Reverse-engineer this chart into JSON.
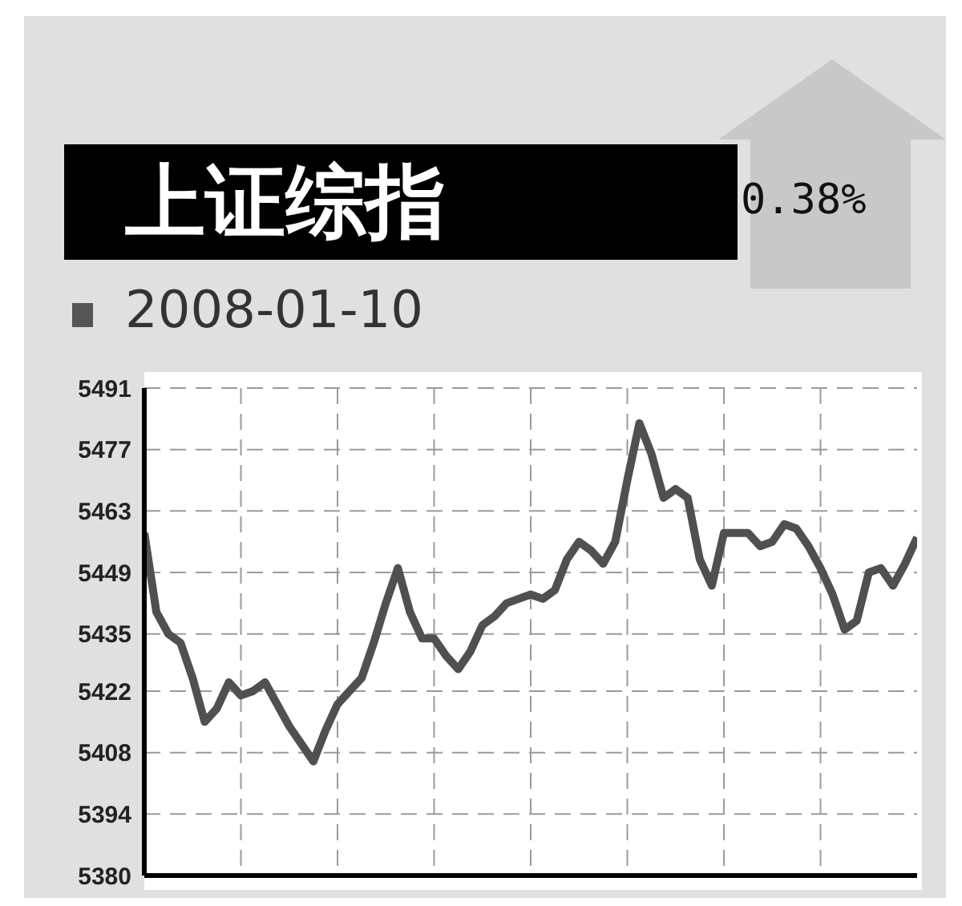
{
  "chart_data": {
    "type": "line",
    "title": "上证综指",
    "subtitle": "2008-01-10",
    "annotations": [
      "0.38%"
    ],
    "categories": [
      null,
      null,
      null,
      null,
      null,
      null,
      null,
      null,
      null,
      null,
      null,
      null,
      null,
      null,
      null,
      null,
      null,
      null,
      null,
      null,
      null,
      null,
      null,
      null,
      null,
      null,
      null,
      null,
      null,
      null,
      null,
      null,
      null,
      null,
      null,
      null,
      null,
      null,
      null,
      null,
      null,
      null,
      null,
      null,
      null,
      null,
      null,
      null,
      null,
      null,
      null,
      null,
      null,
      null,
      null,
      null,
      null,
      null,
      null,
      null,
      null,
      null,
      null,
      null,
      null
    ],
    "series": [
      {
        "color": "#505050",
        "values": [
          5458,
          5440,
          5435,
          5433,
          5425,
          5415,
          5418,
          5424,
          5421,
          5422,
          5424,
          5419,
          5414,
          5410,
          5406,
          5413,
          5419,
          5422,
          5425,
          5433,
          5442,
          5450,
          5440,
          5434,
          5434,
          5430,
          5427,
          5431,
          5437,
          5439,
          5442,
          5443,
          5444,
          5443,
          5445,
          5452,
          5456,
          5454,
          5451,
          5456,
          5470,
          5483,
          5476,
          5466,
          5468,
          5466,
          5452,
          5446,
          5458,
          5458,
          5458,
          5455,
          5456,
          5460,
          5459,
          5455,
          5450,
          5444,
          5436,
          5438,
          5449,
          5450,
          5446,
          5451,
          5457
        ]
      }
    ],
    "ylim": [
      5380,
      5491
    ],
    "yticks": [
      5380,
      5394,
      5408,
      5422,
      5435,
      5449,
      5463,
      5477,
      5491
    ],
    "grid": true,
    "marker": "none",
    "line_style": "solid",
    "tick_labels": "y"
  }
}
